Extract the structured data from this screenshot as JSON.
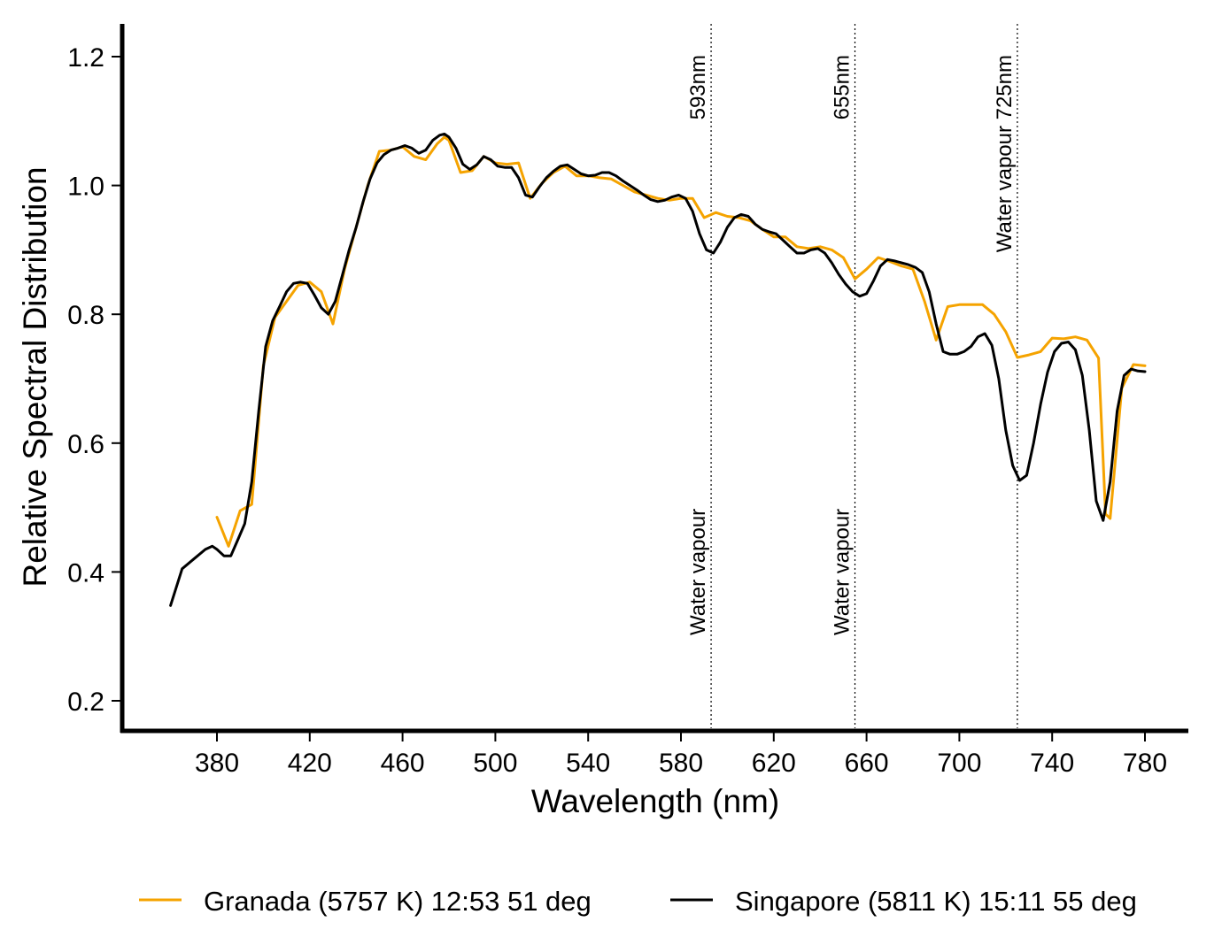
{
  "chart_data": {
    "type": "line",
    "title": "",
    "xlabel": "Wavelength (nm)",
    "ylabel": "Relative Spectral Distribution",
    "xlim": [
      350,
      800
    ],
    "ylim": [
      0.15,
      1.25
    ],
    "xticks": [
      380,
      420,
      460,
      500,
      540,
      580,
      620,
      660,
      700,
      740,
      780
    ],
    "xtick_labels": [
      "380",
      "420",
      "460",
      "500",
      "540",
      "580",
      "620",
      "660",
      "700",
      "740",
      "780"
    ],
    "yticks": [
      0.2,
      0.4,
      0.6,
      0.8,
      1.0,
      1.2
    ],
    "ytick_labels": [
      "0.2",
      "0.4",
      "0.6",
      "0.8",
      "1.0",
      "1.2"
    ],
    "grid": false,
    "legend_position": "bottom",
    "series": [
      {
        "name": "Granada (5757 K) 12:53 51 deg",
        "color": "#F5A300",
        "x": [
          380,
          385,
          390,
          395,
          400,
          405,
          410,
          415,
          420,
          425,
          430,
          435,
          440,
          445,
          450,
          455,
          460,
          465,
          470,
          475,
          478,
          480,
          485,
          490,
          495,
          500,
          505,
          510,
          515,
          520,
          525,
          530,
          535,
          540,
          545,
          550,
          555,
          560,
          565,
          570,
          575,
          580,
          585,
          590,
          595,
          600,
          605,
          610,
          615,
          620,
          625,
          630,
          635,
          640,
          645,
          650,
          655,
          660,
          665,
          670,
          675,
          680,
          685,
          690,
          695,
          700,
          705,
          710,
          715,
          720,
          725,
          730,
          735,
          740,
          745,
          750,
          755,
          760,
          763,
          765,
          770,
          775,
          780
        ],
        "values": [
          0.485,
          0.44,
          0.495,
          0.505,
          0.72,
          0.795,
          0.82,
          0.845,
          0.85,
          0.835,
          0.785,
          0.87,
          0.935,
          1.0,
          1.053,
          1.055,
          1.06,
          1.045,
          1.04,
          1.065,
          1.075,
          1.07,
          1.02,
          1.023,
          1.045,
          1.035,
          1.033,
          1.035,
          0.98,
          1.003,
          1.02,
          1.03,
          1.015,
          1.015,
          1.012,
          1.01,
          1.0,
          0.99,
          0.985,
          0.98,
          0.977,
          0.98,
          0.98,
          0.95,
          0.958,
          0.952,
          0.95,
          0.945,
          0.932,
          0.92,
          0.92,
          0.905,
          0.902,
          0.905,
          0.9,
          0.888,
          0.855,
          0.87,
          0.888,
          0.882,
          0.875,
          0.87,
          0.82,
          0.76,
          0.812,
          0.815,
          0.815,
          0.815,
          0.8,
          0.773,
          0.733,
          0.737,
          0.742,
          0.763,
          0.762,
          0.765,
          0.76,
          0.732,
          0.49,
          0.483,
          0.685,
          0.722,
          0.72
        ]
      },
      {
        "name": "Singapore (5811 K) 15:11 55 deg",
        "color": "#000000",
        "x": [
          360,
          365,
          370,
          375,
          378,
          380,
          383,
          386,
          389,
          392,
          395,
          398,
          401,
          404,
          407,
          410,
          413,
          416,
          419,
          422,
          425,
          428,
          431,
          434,
          437,
          440,
          443,
          446,
          449,
          452,
          455,
          458,
          461,
          464,
          467,
          470,
          473,
          476,
          478,
          480,
          483,
          486,
          489,
          492,
          495,
          498,
          501,
          504,
          507,
          510,
          513,
          516,
          519,
          522,
          525,
          528,
          531,
          534,
          537,
          540,
          543,
          546,
          549,
          552,
          555,
          558,
          561,
          564,
          567,
          570,
          573,
          576,
          579,
          582,
          585,
          588,
          591,
          594,
          597,
          600,
          603,
          606,
          609,
          612,
          615,
          618,
          621,
          624,
          627,
          630,
          633,
          636,
          639,
          642,
          645,
          648,
          651,
          654,
          657,
          660,
          663,
          666,
          669,
          672,
          675,
          678,
          681,
          684,
          687,
          690,
          693,
          696,
          699,
          702,
          705,
          708,
          711,
          714,
          717,
          720,
          723,
          726,
          729,
          732,
          735,
          738,
          741,
          744,
          747,
          750,
          753,
          756,
          759,
          762,
          765,
          768,
          771,
          774,
          777,
          780
        ],
        "values": [
          0.348,
          0.405,
          0.42,
          0.435,
          0.44,
          0.435,
          0.425,
          0.425,
          0.45,
          0.475,
          0.54,
          0.65,
          0.75,
          0.79,
          0.812,
          0.835,
          0.848,
          0.85,
          0.848,
          0.83,
          0.81,
          0.8,
          0.82,
          0.86,
          0.9,
          0.935,
          0.975,
          1.01,
          1.035,
          1.048,
          1.055,
          1.058,
          1.062,
          1.058,
          1.05,
          1.055,
          1.07,
          1.078,
          1.08,
          1.075,
          1.058,
          1.033,
          1.025,
          1.032,
          1.045,
          1.04,
          1.03,
          1.028,
          1.028,
          1.012,
          0.985,
          0.982,
          0.998,
          1.012,
          1.022,
          1.03,
          1.032,
          1.025,
          1.018,
          1.015,
          1.016,
          1.02,
          1.02,
          1.015,
          1.007,
          1.0,
          0.993,
          0.985,
          0.978,
          0.975,
          0.977,
          0.982,
          0.985,
          0.98,
          0.96,
          0.925,
          0.9,
          0.895,
          0.912,
          0.935,
          0.95,
          0.955,
          0.952,
          0.94,
          0.932,
          0.928,
          0.925,
          0.915,
          0.905,
          0.895,
          0.895,
          0.9,
          0.902,
          0.895,
          0.88,
          0.862,
          0.847,
          0.835,
          0.828,
          0.832,
          0.852,
          0.875,
          0.885,
          0.883,
          0.88,
          0.877,
          0.873,
          0.865,
          0.835,
          0.785,
          0.742,
          0.738,
          0.738,
          0.742,
          0.75,
          0.765,
          0.77,
          0.752,
          0.7,
          0.62,
          0.565,
          0.542,
          0.55,
          0.6,
          0.66,
          0.71,
          0.742,
          0.755,
          0.757,
          0.745,
          0.705,
          0.62,
          0.51,
          0.48,
          0.54,
          0.65,
          0.705,
          0.715,
          0.712,
          0.711
        ]
      }
    ],
    "annotations": [
      {
        "x": 593,
        "top_label": "593nm",
        "bottom_label": "Water vapour"
      },
      {
        "x": 655,
        "top_label": "655nm",
        "bottom_label": "Water vapour"
      },
      {
        "x": 725,
        "top_label": "Water vapour  725nm"
      }
    ]
  }
}
